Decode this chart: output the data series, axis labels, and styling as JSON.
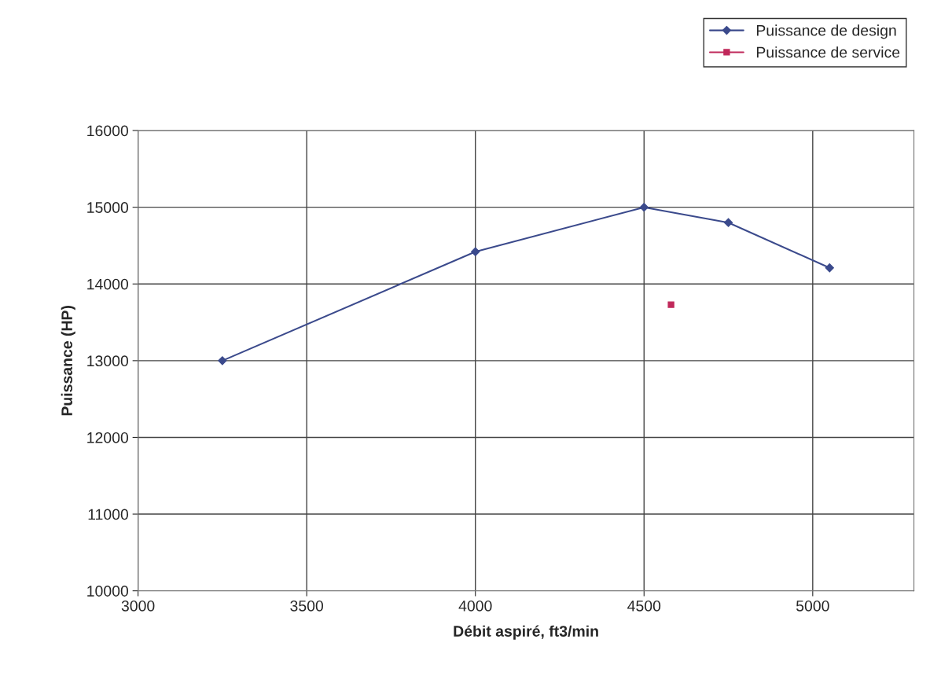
{
  "chart_data": {
    "type": "line",
    "xlabel": "Débit aspiré, ft3/min",
    "ylabel": "Puissance (HP)",
    "xlim": [
      3000,
      5300
    ],
    "xticks": [
      3000,
      3500,
      4000,
      4500,
      5000
    ],
    "ylim": [
      10000,
      16000
    ],
    "yticks": [
      10000,
      11000,
      12000,
      13000,
      14000,
      15000,
      16000
    ],
    "grid": true,
    "legend": "top right",
    "series": [
      {
        "name": "Puissance de design",
        "marker": "diamond",
        "color": "#3b4a8c",
        "x": [
          3250,
          4000,
          4500,
          4750,
          5050
        ],
        "values": [
          13000,
          14420,
          15000,
          14800,
          14210
        ]
      },
      {
        "name": "Puissance de service",
        "type": "scatter",
        "marker": "square",
        "color": "#c0285a",
        "x": [
          4580
        ],
        "values": [
          13730
        ]
      }
    ]
  }
}
